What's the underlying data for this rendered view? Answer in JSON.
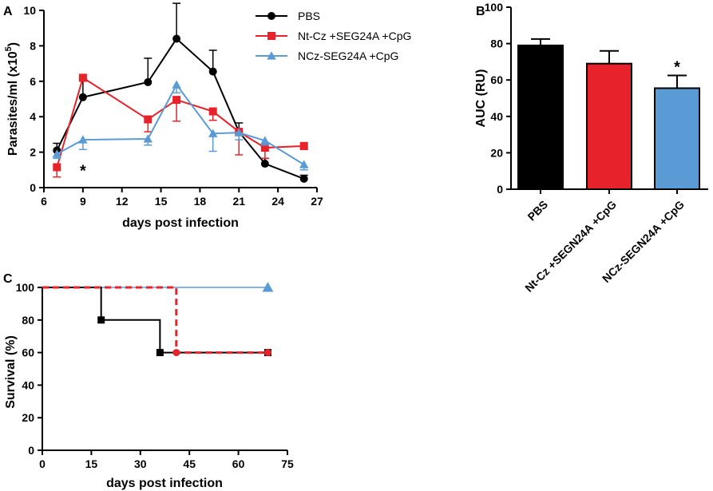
{
  "chart_data": [
    {
      "panel": "A",
      "type": "line",
      "ylabel_main": "Parasites/ml (x10",
      "ylabel_sup": "5",
      "ylabel_end": ")",
      "xlabel": "days post infection",
      "xlim": [
        6,
        27
      ],
      "ylim": [
        0,
        10
      ],
      "xticks": [
        6,
        9,
        12,
        15,
        18,
        21,
        24,
        27
      ],
      "yticks": [
        0,
        2,
        4,
        6,
        8,
        10
      ],
      "series": [
        {
          "name": "PBS",
          "color": "#000000",
          "marker": "circle",
          "x": [
            7,
            9,
            14,
            16.2,
            19,
            21,
            23,
            26
          ],
          "y": [
            2.1,
            5.1,
            5.95,
            8.4,
            6.55,
            3.15,
            1.35,
            0.5
          ],
          "err": [
            0.4,
            1.0,
            1.35,
            2.0,
            1.2,
            0.5,
            0.3,
            0.2
          ]
        },
        {
          "name": "Nt-Cz +SEG24A +CpG",
          "color": "#e8222a",
          "marker": "square",
          "x": [
            7,
            9,
            14,
            16.2,
            19,
            21,
            23,
            26
          ],
          "y": [
            1.15,
            6.2,
            3.85,
            4.95,
            4.3,
            3.15,
            2.25,
            2.35
          ],
          "err": [
            0.55,
            0.2,
            0.7,
            1.2,
            0.5,
            1.3,
            0.6,
            0.2
          ]
        },
        {
          "name": "NCz-SEG24A +CpG",
          "color": "#5b9bd5",
          "marker": "triangle",
          "x": [
            7,
            9,
            14,
            16.2,
            19,
            21,
            23,
            26
          ],
          "y": [
            1.9,
            2.7,
            2.75,
            5.8,
            3.05,
            3.1,
            2.65,
            1.3
          ],
          "err": [
            0.25,
            0.55,
            0.35,
            0.45,
            1.0,
            0.4,
            0.25,
            0.3
          ]
        }
      ],
      "annotations": [
        {
          "text": "*",
          "x": 9,
          "y": 1.2
        }
      ]
    },
    {
      "panel": "B",
      "type": "bar",
      "ylabel": "AUC (RU)",
      "ylim": [
        0,
        100
      ],
      "yticks": [
        0,
        20,
        40,
        60,
        80,
        100
      ],
      "categories": [
        "PBS",
        "Nt-Cz +SEGN24A +CpG",
        "NCz-SEGN24A +CpG"
      ],
      "values": [
        79,
        69,
        55.5
      ],
      "err": [
        3.5,
        7,
        7
      ],
      "colors": [
        "#000000",
        "#e8222a",
        "#5b9bd5"
      ],
      "annotations": [
        {
          "text": "*",
          "category": 2
        }
      ]
    },
    {
      "panel": "C",
      "type": "line",
      "chart_kind": "kaplan-meier",
      "ylabel": "Survival (%)",
      "xlabel": "days post infection",
      "xlim": [
        0,
        75
      ],
      "ylim": [
        0,
        100
      ],
      "xticks": [
        0,
        15,
        30,
        45,
        60,
        75
      ],
      "yticks": [
        0,
        20,
        40,
        60,
        80,
        100
      ],
      "series": [
        {
          "name": "NCz-SEG24A +CpG",
          "color": "#5b9bd5",
          "style": "solid",
          "width": 1.5,
          "marker": "triangle",
          "x": [
            0,
            69
          ],
          "y": [
            100,
            100
          ],
          "markers": [
            [
              69,
              100
            ]
          ]
        },
        {
          "name": "PBS",
          "color": "#000000",
          "style": "solid",
          "width": 2,
          "marker": "square",
          "x": [
            0,
            18,
            18,
            36,
            36,
            69
          ],
          "y": [
            100,
            100,
            80,
            80,
            60,
            60
          ],
          "markers": [
            [
              18,
              80
            ],
            [
              36,
              60
            ],
            [
              69,
              60
            ]
          ]
        },
        {
          "name": "Nt-Cz +SEG24A +CpG",
          "color": "#e8222a",
          "style": "dashed",
          "width": 3,
          "marker": "circle",
          "x": [
            0,
            41,
            41,
            69
          ],
          "y": [
            100,
            100,
            60,
            60
          ],
          "markers": [
            [
              41,
              60
            ],
            [
              69,
              60
            ]
          ]
        }
      ]
    }
  ]
}
